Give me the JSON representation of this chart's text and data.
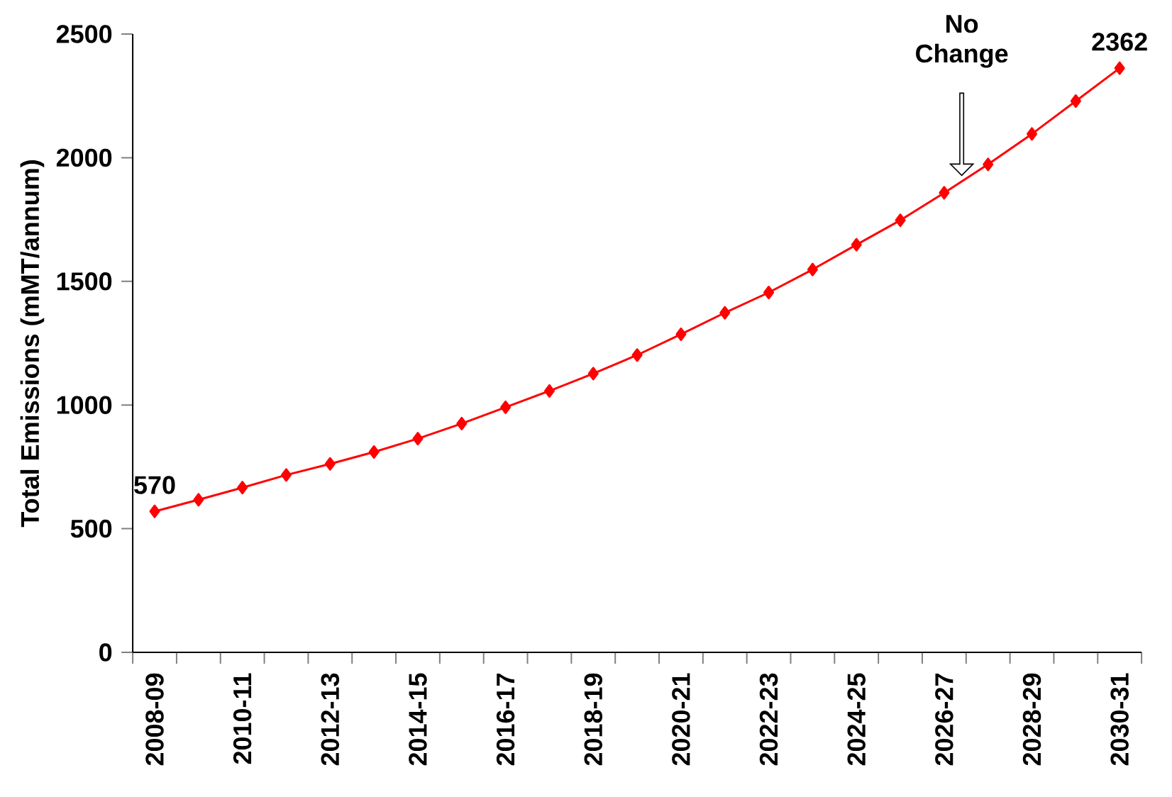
{
  "chart_data": {
    "type": "line",
    "ylabel": "Total Emissions (mMT/annum)",
    "categories": [
      "2008-09",
      null,
      "2010-11",
      null,
      "2012-13",
      null,
      "2014-15",
      null,
      "2016-17",
      null,
      "2018-19",
      null,
      "2020-21",
      null,
      "2022-23",
      null,
      "2024-25",
      null,
      "2026-27",
      null,
      "2028-29",
      null,
      "2030-31"
    ],
    "series": [
      {
        "color": "#ff0000",
        "values": [
          570,
          617,
          666,
          717,
          762,
          810,
          864,
          925,
          991,
          1057,
          1127,
          1202,
          1286,
          1373,
          1455,
          1548,
          1648,
          1747,
          1858,
          1973,
          2096,
          2229,
          2362
        ],
        "value_labels": [
          "570",
          null,
          null,
          null,
          null,
          null,
          null,
          null,
          null,
          null,
          null,
          null,
          null,
          null,
          null,
          null,
          null,
          null,
          null,
          null,
          null,
          null,
          "2362"
        ]
      }
    ],
    "ylim": [
      0,
      2500
    ],
    "yticks": [
      0,
      500,
      1000,
      1500,
      2000,
      2500
    ],
    "marker": "diamond",
    "line_style": "solid",
    "grid": false,
    "annotations": [
      "No Change"
    ]
  }
}
